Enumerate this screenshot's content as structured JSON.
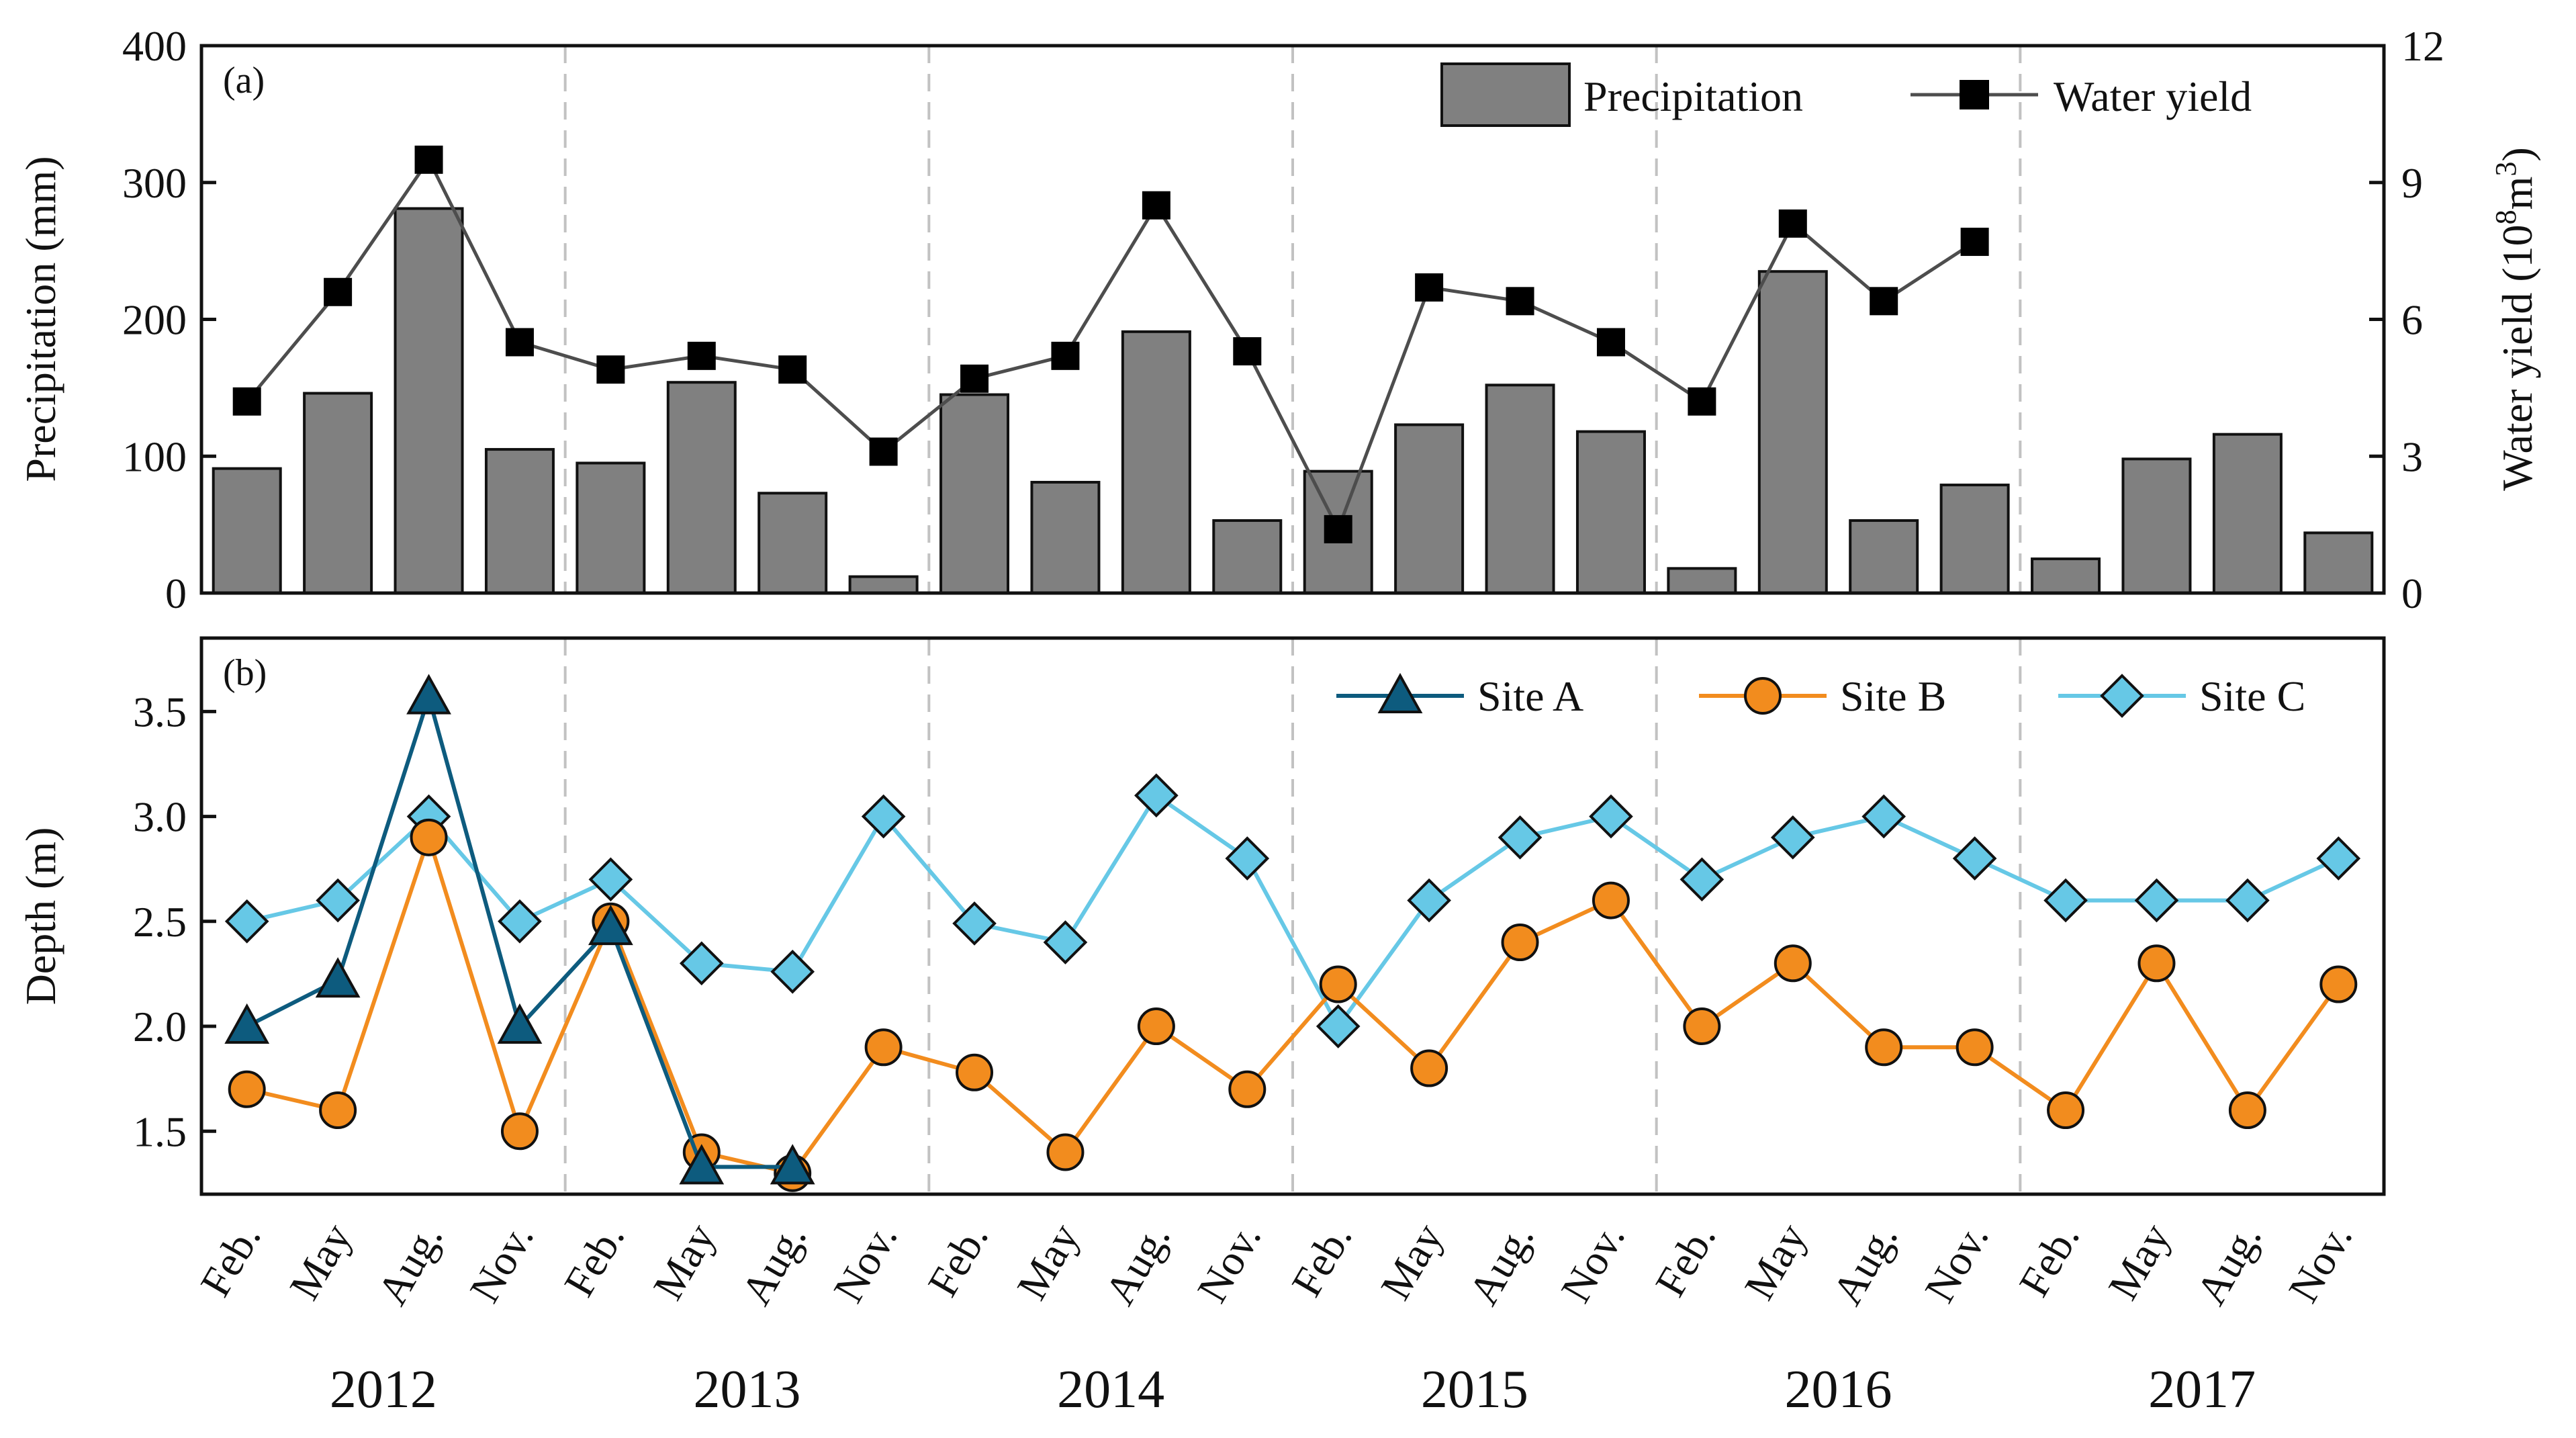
{
  "colors": {
    "bar_fill": "#808080",
    "bar_edge": "#111111",
    "water_line": "#4d4d4d",
    "water_marker": "#000000",
    "site_a": "#0d5b7e",
    "site_b": "#f28c1e",
    "site_c": "#66c8e6",
    "divider": "#c2c2c2"
  },
  "x_axis": {
    "seasons": [
      "Feb.",
      "May",
      "Aug.",
      "Nov.",
      "Feb.",
      "May",
      "Aug.",
      "Nov.",
      "Feb.",
      "May",
      "Aug.",
      "Nov.",
      "Feb.",
      "May",
      "Aug.",
      "Nov.",
      "Feb.",
      "May",
      "Aug.",
      "Nov.",
      "Feb.",
      "May",
      "Aug.",
      "Nov."
    ],
    "years": [
      "2012",
      "2013",
      "2014",
      "2015",
      "2016",
      "2017"
    ]
  },
  "chart_data": [
    {
      "type": "bar",
      "panel_label": "(a)",
      "ylabel": "Precipitation (mm)",
      "ylim": [
        0,
        400
      ],
      "yticks": [
        "0",
        "100",
        "200",
        "300",
        "400"
      ],
      "y2label_main": "Water yield (10",
      "y2label_exp": "8",
      "y2label_unit": "m",
      "y2label_unit_exp": "3",
      "y2label_close": ")",
      "y2lim": [
        0,
        12
      ],
      "y2ticks": [
        "0",
        "3",
        "6",
        "9",
        "12"
      ],
      "legend": [
        "Precipitation",
        "Water yield"
      ],
      "legend_position": "top-right",
      "series": [
        {
          "name": "Precipitation",
          "kind": "bar",
          "axis": "left",
          "values": [
            91,
            146,
            281,
            105,
            95,
            154,
            73,
            12,
            145,
            81,
            191,
            53,
            89,
            123,
            152,
            118,
            18,
            235,
            53,
            79,
            25,
            98,
            116,
            44
          ]
        },
        {
          "name": "Water yield",
          "kind": "line",
          "axis": "right",
          "values": [
            4.2,
            6.6,
            9.5,
            5.5,
            4.9,
            5.2,
            4.9,
            3.1,
            4.7,
            5.2,
            8.5,
            5.3,
            1.4,
            6.7,
            6.4,
            5.5,
            4.2,
            8.1,
            6.4,
            7.7,
            null,
            null,
            null,
            null
          ]
        }
      ]
    },
    {
      "type": "line",
      "panel_label": "(b)",
      "ylabel": "Depth (m)",
      "ylim": [
        1.2,
        3.85
      ],
      "yticks": [
        "1.5",
        "2.0",
        "2.5",
        "3.0",
        "3.5"
      ],
      "legend": [
        "Site A",
        "Site B",
        "Site C"
      ],
      "legend_position": "top-right",
      "series": [
        {
          "name": "Site A",
          "marker": "triangle",
          "values": [
            2.0,
            2.22,
            3.57,
            2.0,
            2.47,
            1.33,
            1.33,
            null,
            null,
            null,
            null,
            null,
            null,
            null,
            null,
            null,
            null,
            null,
            null,
            null,
            null,
            null,
            null,
            null
          ]
        },
        {
          "name": "Site B",
          "marker": "circle",
          "values": [
            1.7,
            1.6,
            2.9,
            1.5,
            2.5,
            1.4,
            1.3,
            1.9,
            1.78,
            1.4,
            2.0,
            1.7,
            2.2,
            1.8,
            2.4,
            2.6,
            2.0,
            2.3,
            1.9,
            1.9,
            1.6,
            2.3,
            1.6,
            2.2
          ]
        },
        {
          "name": "Site C",
          "marker": "diamond",
          "values": [
            2.5,
            2.6,
            3.0,
            2.5,
            2.7,
            2.3,
            2.26,
            3.0,
            2.49,
            2.4,
            3.1,
            2.8,
            2.0,
            2.6,
            2.9,
            3.0,
            2.7,
            2.9,
            3.0,
            2.8,
            2.6,
            2.6,
            2.6,
            2.8
          ]
        }
      ]
    }
  ]
}
